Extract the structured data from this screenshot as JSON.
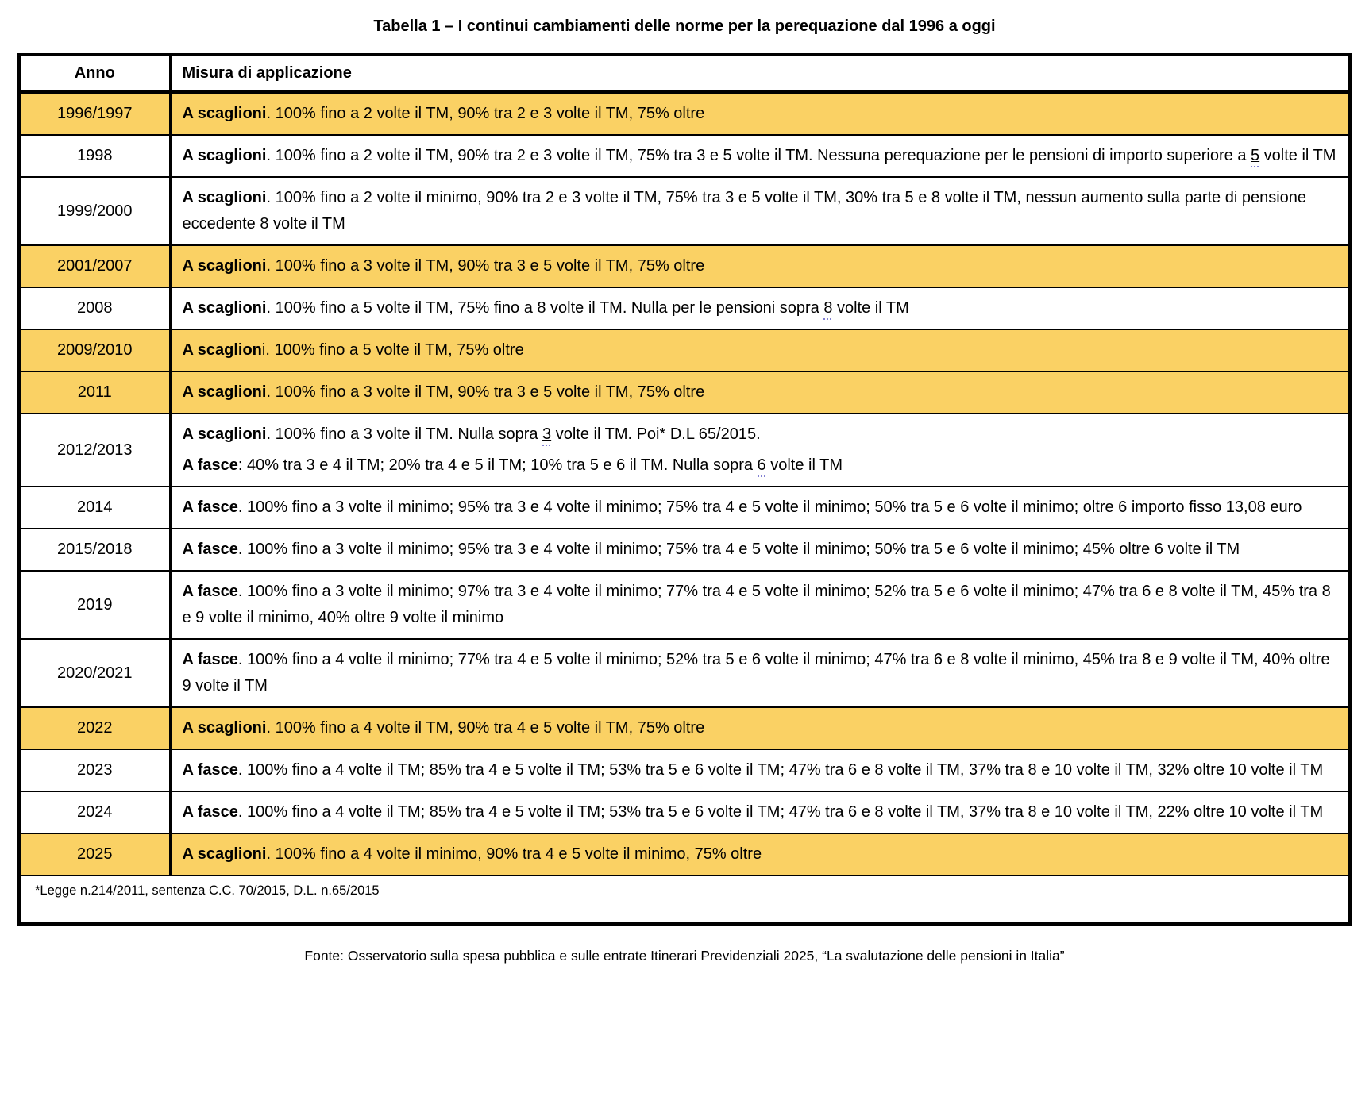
{
  "title": "Tabella 1 – I continui cambiamenti delle norme per la perequazione dal 1996 a oggi",
  "colors": {
    "highlight": "#FAD164",
    "border": "#000000",
    "spellcheck_dots": "#8280d2"
  },
  "table": {
    "headers": {
      "year": "Anno",
      "measure": "Misura di applicazione"
    },
    "rows": [
      {
        "year": "1996/1997",
        "highlight": true,
        "paragraphs": [
          [
            {
              "t": "A scaglioni",
              "b": true
            },
            {
              "t": ". 100% fino a 2 volte il TM, 90% tra 2 e 3 volte il TM, 75% oltre"
            }
          ]
        ]
      },
      {
        "year": "1998",
        "highlight": false,
        "paragraphs": [
          [
            {
              "t": "A scaglioni",
              "b": true
            },
            {
              "t": ". 100% fino a 2 volte il TM, 90% tra 2 e 3 volte il TM, 75% tra 3 e 5 volte il TM. Nessuna perequazione per le pensioni di importo superiore a "
            },
            {
              "t": "5",
              "u": true
            },
            {
              "t": " volte il TM"
            }
          ]
        ]
      },
      {
        "year": "1999/2000",
        "highlight": false,
        "paragraphs": [
          [
            {
              "t": "A scaglioni",
              "b": true
            },
            {
              "t": ". 100% fino a 2 volte il minimo, 90% tra 2 e 3 volte il TM, 75% tra 3 e 5 volte il TM, 30% tra 5 e 8 volte il TM, nessun aumento sulla parte di pensione eccedente 8 volte il TM"
            }
          ]
        ]
      },
      {
        "year": "2001/2007",
        "highlight": true,
        "paragraphs": [
          [
            {
              "t": "A scaglioni",
              "b": true
            },
            {
              "t": ". 100% fino a 3 volte il TM, 90% tra 3 e 5 volte il TM, 75% oltre"
            }
          ]
        ]
      },
      {
        "year": "2008",
        "highlight": false,
        "paragraphs": [
          [
            {
              "t": "A scaglioni",
              "b": true
            },
            {
              "t": ". 100% fino a 5 volte il TM, 75% fino a 8 volte il TM. Nulla per le pensioni sopra "
            },
            {
              "t": "8",
              "u": true
            },
            {
              "t": " volte il TM"
            }
          ]
        ]
      },
      {
        "year": "2009/2010",
        "highlight": true,
        "paragraphs": [
          [
            {
              "t": "A scaglion",
              "b": true
            },
            {
              "t": "i. 100% fino a 5 volte il TM, 75% oltre"
            }
          ]
        ]
      },
      {
        "year": "2011",
        "highlight": true,
        "paragraphs": [
          [
            {
              "t": "A scaglioni",
              "b": true
            },
            {
              "t": ". 100% fino a 3 volte il TM, 90% tra 3 e 5 volte il TM, 75% oltre"
            }
          ]
        ]
      },
      {
        "year": "2012/2013",
        "highlight": false,
        "paragraphs": [
          [
            {
              "t": "A scaglioni",
              "b": true
            },
            {
              "t": ". 100% fino a 3 volte il TM. Nulla sopra "
            },
            {
              "t": "3",
              "u": true
            },
            {
              "t": " volte il TM. Poi* D.L 65/2015."
            }
          ],
          [
            {
              "t": "A fasce",
              "b": true
            },
            {
              "t": ": 40% tra 3 e 4 il TM; 20% tra 4 e 5 il TM; 10% tra 5 e 6 il TM. Nulla sopra "
            },
            {
              "t": "6",
              "u": true
            },
            {
              "t": " volte il TM"
            }
          ]
        ]
      },
      {
        "year": "2014",
        "highlight": false,
        "paragraphs": [
          [
            {
              "t": "A fasce",
              "b": true
            },
            {
              "t": ". 100% fino a 3 volte il minimo; 95% tra 3 e 4 volte il minimo; 75% tra 4 e 5 volte il minimo; 50% tra 5 e 6 volte il minimo; oltre 6 importo fisso 13,08 euro"
            }
          ]
        ]
      },
      {
        "year": "2015/2018",
        "highlight": false,
        "paragraphs": [
          [
            {
              "t": "A fasce",
              "b": true
            },
            {
              "t": ". 100% fino a 3 volte il minimo; 95% tra 3 e 4 volte il minimo; 75% tra 4 e 5 volte il minimo; 50% tra 5 e 6 volte il minimo; 45% oltre 6 volte il TM"
            }
          ]
        ]
      },
      {
        "year": "2019",
        "highlight": false,
        "paragraphs": [
          [
            {
              "t": "A fasce",
              "b": true
            },
            {
              "t": ". 100% fino a 3 volte il minimo; 97% tra 3 e 4 volte il minimo; 77% tra 4 e 5 volte il minimo; 52% tra 5 e 6 volte il minimo; 47% tra 6 e 8 volte il TM, 45% tra 8 e 9 volte il minimo, 40% oltre 9 volte il minimo"
            }
          ]
        ]
      },
      {
        "year": "2020/2021",
        "highlight": false,
        "paragraphs": [
          [
            {
              "t": "A fasce",
              "b": true
            },
            {
              "t": ". 100% fino a 4 volte il minimo; 77% tra 4 e 5 volte il minimo; 52% tra 5 e 6 volte il minimo; 47% tra 6 e 8 volte il minimo, 45% tra 8 e 9 volte il TM, 40% oltre 9 volte il TM"
            }
          ]
        ]
      },
      {
        "year": "2022",
        "highlight": true,
        "paragraphs": [
          [
            {
              "t": "A scaglioni",
              "b": true
            },
            {
              "t": ". 100% fino a 4 volte il TM, 90% tra 4 e 5 volte il TM, 75% oltre"
            }
          ]
        ]
      },
      {
        "year": "2023",
        "highlight": false,
        "paragraphs": [
          [
            {
              "t": "A fasce",
              "b": true
            },
            {
              "t": ". 100% fino a 4 volte il TM; 85% tra 4 e 5 volte il TM; 53% tra 5 e 6 volte il TM; 47% tra 6 e 8 volte il TM, 37% tra 8 e 10 volte il TM, 32% oltre 10 volte il TM"
            }
          ]
        ]
      },
      {
        "year": "2024",
        "highlight": false,
        "paragraphs": [
          [
            {
              "t": "A fasce",
              "b": true
            },
            {
              "t": ". 100% fino a 4 volte il TM; 85% tra 4 e 5 volte il TM; 53% tra 5 e 6 volte il TM; 47% tra 6 e 8 volte il TM, 37% tra 8 e 10 volte il TM, 22% oltre 10 volte il TM"
            }
          ]
        ]
      },
      {
        "year": "2025",
        "highlight": true,
        "paragraphs": [
          [
            {
              "t": "A scaglioni",
              "b": true
            },
            {
              "t": ". 100% fino a 4 volte il minimo, 90% tra 4 e 5 volte il minimo, 75% oltre"
            }
          ]
        ]
      }
    ],
    "footnote": "*Legge n.214/2011, sentenza C.C. 70/2015, D.L. n.65/2015"
  },
  "source": "Fonte: Osservatorio sulla spesa pubblica e sulle entrate Itinerari Previdenziali 2025, “La svalutazione delle pensioni in Italia”"
}
